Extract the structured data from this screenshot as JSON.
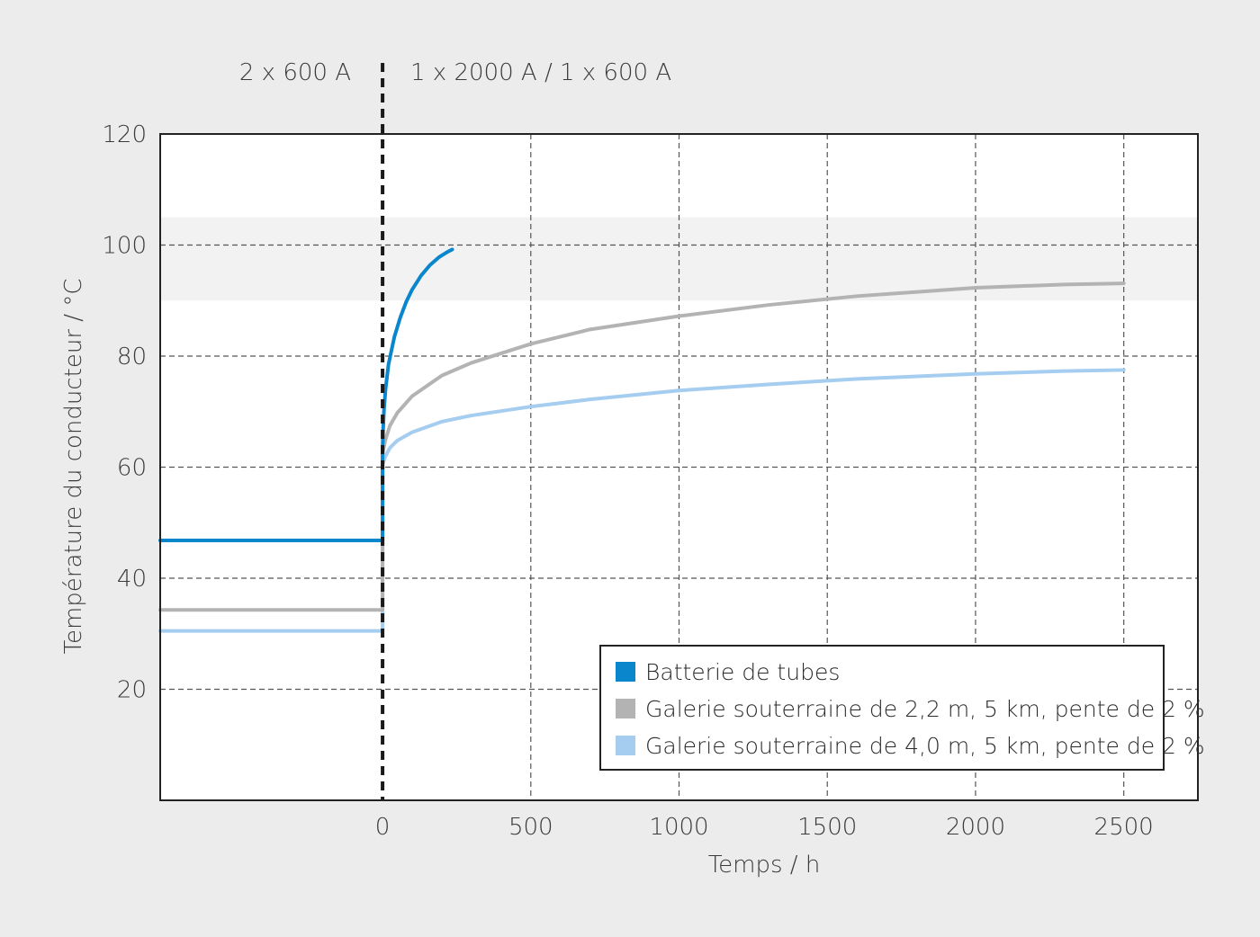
{
  "chart_data": {
    "type": "line",
    "xlabel": "Temps / h",
    "ylabel": "Température du conducteur / °C",
    "xlim": [
      -750,
      2750
    ],
    "ylim": [
      0,
      120
    ],
    "x_ticks": [
      0,
      500,
      1000,
      1500,
      2000,
      2500
    ],
    "y_ticks": [
      20,
      40,
      60,
      80,
      100,
      120
    ],
    "grid": true,
    "legend_position": "bottom-right",
    "annotations": {
      "left_phase": "2 x 600 A",
      "right_phase": "1 x 2000 A / 1 x 600 A"
    },
    "shaded_band_y": [
      90,
      105
    ],
    "series": [
      {
        "name": "Batterie de tubes",
        "color": "#0a86cc",
        "pre_value": 46.8,
        "x": [
          0,
          2,
          5,
          10,
          20,
          40,
          60,
          80,
          100,
          130,
          160,
          190,
          220,
          235
        ],
        "y": [
          63,
          67,
          70.5,
          74,
          78.5,
          83.5,
          87,
          89.8,
          92,
          94.5,
          96.4,
          97.8,
          98.8,
          99.2
        ]
      },
      {
        "name": "Galerie souterraine de 2,2 m, 5 km, pente de 2 %",
        "color": "#b3b3b3",
        "pre_value": 34.3,
        "x": [
          0,
          10,
          25,
          50,
          100,
          200,
          300,
          500,
          700,
          1000,
          1300,
          1600,
          2000,
          2300,
          2500
        ],
        "y": [
          62.5,
          65,
          67.5,
          69.8,
          72.8,
          76.5,
          78.8,
          82.2,
          84.8,
          87.2,
          89.2,
          90.8,
          92.3,
          92.9,
          93.1
        ]
      },
      {
        "name": "Galerie souterraine de 4,0 m, 5 km, pente de 2 %",
        "color": "#a4cdef",
        "pre_value": 30.5,
        "x": [
          0,
          10,
          25,
          50,
          100,
          200,
          300,
          500,
          700,
          1000,
          1300,
          1600,
          2000,
          2300,
          2500
        ],
        "y": [
          60.5,
          62,
          63.5,
          64.8,
          66.3,
          68.2,
          69.3,
          70.9,
          72.2,
          73.8,
          74.9,
          75.9,
          76.8,
          77.3,
          77.5
        ]
      }
    ]
  }
}
